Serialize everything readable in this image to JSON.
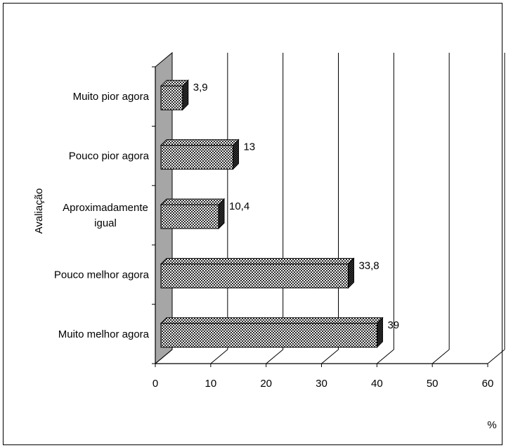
{
  "chart_data": {
    "type": "bar",
    "orientation": "horizontal",
    "categories": [
      "Muito pior agora",
      "Pouco pior agora",
      "Aproximadamente igual",
      "Pouco melhor agora",
      "Muito melhor agora"
    ],
    "category_label_lines": [
      [
        "Muito pior agora"
      ],
      [
        "Pouco pior agora"
      ],
      [
        "Aproximadamente",
        "igual"
      ],
      [
        "Pouco melhor agora"
      ],
      [
        "Muito melhor agora"
      ]
    ],
    "values": [
      3.9,
      13,
      10.4,
      33.8,
      39
    ],
    "data_labels": [
      "3,9",
      "13",
      "10,4",
      "33,8",
      "39"
    ],
    "xlim": [
      0,
      60
    ],
    "x_ticks": [
      "0",
      "10",
      "20",
      "30",
      "40",
      "50",
      "60"
    ],
    "xlabel": "%",
    "ylabel": "Avaliação",
    "grid": true,
    "style": "3d, crosshatched bars",
    "colors": {
      "bar_fill": "#c8c8c8",
      "back_wall": "#a6a6a6",
      "grid": "#000000"
    }
  }
}
